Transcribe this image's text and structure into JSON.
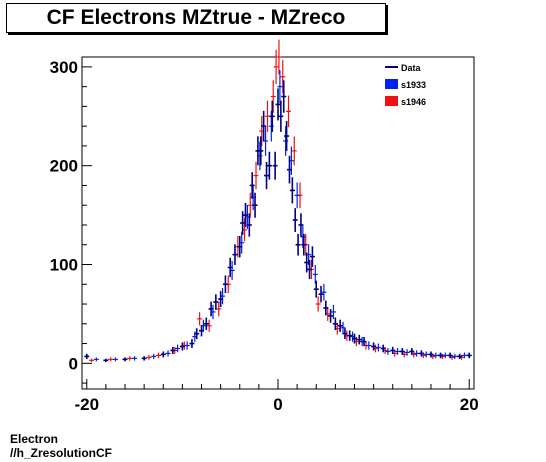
{
  "chart_data": {
    "type": "scatter",
    "title": "CF Electrons MZtrue - MZreco",
    "xlabel": "",
    "ylabel": "",
    "xlim": [
      -20.5,
      20.5
    ],
    "ylim": [
      -26,
      310
    ],
    "xticks": [
      -20,
      0,
      20
    ],
    "yticks": [
      0,
      100,
      200,
      300
    ],
    "grid": false,
    "legend": {
      "placement": "top-right",
      "entries": [
        {
          "label": "Data",
          "style": "line",
          "color": "#000080"
        },
        {
          "label": "s1933",
          "style": "box",
          "color": "#0022ee"
        },
        {
          "label": "s1946",
          "style": "box",
          "color": "#ee1111"
        }
      ]
    },
    "series": [
      {
        "name": "Data",
        "color": "#000080",
        "x": [
          -20.0,
          -18.0,
          -16.0,
          -14.0,
          -12.0,
          -11.0,
          -10.0,
          -9.0,
          -8.5,
          -8.0,
          -7.5,
          -7.0,
          -6.5,
          -6.0,
          -5.5,
          -5.0,
          -4.5,
          -4.0,
          -3.7,
          -3.4,
          -3.0,
          -2.7,
          -2.4,
          -2.1,
          -1.8,
          -1.5,
          -1.2,
          -0.9,
          -0.6,
          -0.3,
          0.0,
          0.3,
          0.6,
          0.9,
          1.2,
          1.5,
          1.8,
          2.1,
          2.4,
          2.7,
          3.0,
          3.3,
          3.6,
          4.0,
          4.5,
          5.0,
          5.5,
          6.0,
          6.5,
          7.0,
          7.5,
          8.0,
          8.5,
          9.0,
          10.0,
          11.0,
          12.0,
          13.0,
          14.0,
          15.0,
          16.0,
          17.0,
          18.0,
          19.0,
          20.0
        ],
        "y": [
          7,
          3,
          4,
          5,
          9,
          13,
          17,
          20,
          30,
          33,
          40,
          55,
          62,
          65,
          80,
          97,
          110,
          118,
          142,
          150,
          140,
          180,
          160,
          215,
          215,
          240,
          190,
          200,
          250,
          200,
          262,
          250,
          270,
          230,
          196,
          175,
          145,
          120,
          140,
          120,
          102,
          95,
          108,
          75,
          70,
          56,
          48,
          40,
          38,
          30,
          28,
          25,
          24,
          22,
          17,
          15,
          13,
          12,
          12,
          10,
          9,
          8,
          8,
          7,
          8
        ]
      },
      {
        "name": "s1933",
        "color": "#0022ee",
        "x": [
          -19.0,
          -17.0,
          -15.0,
          -13.0,
          -11.5,
          -10.5,
          -9.5,
          -8.7,
          -7.8,
          -6.8,
          -5.8,
          -4.8,
          -3.8,
          -3.2,
          -2.6,
          -1.9,
          -1.3,
          -0.7,
          0.2,
          0.8,
          1.4,
          2.0,
          2.6,
          3.2,
          3.9,
          4.8,
          5.8,
          6.8,
          7.8,
          8.8,
          9.5,
          10.5,
          11.5,
          12.5,
          13.5,
          14.5,
          15.5,
          16.5,
          17.5,
          18.5,
          19.5
        ],
        "y": [
          4,
          4,
          5,
          7,
          10,
          15,
          18,
          27,
          38,
          52,
          68,
          94,
          122,
          148,
          168,
          210,
          225,
          240,
          280,
          225,
          205,
          170,
          128,
          110,
          90,
          72,
          52,
          36,
          27,
          22,
          18,
          16,
          12,
          12,
          11,
          10,
          9,
          8,
          8,
          7,
          8
        ]
      },
      {
        "name": "s1946",
        "color": "#ee1111",
        "x": [
          -19.5,
          -17.5,
          -15.5,
          -13.5,
          -12.5,
          -10.8,
          -9.8,
          -8.2,
          -7.2,
          -6.2,
          -5.2,
          -4.2,
          -3.5,
          -2.9,
          -2.3,
          -1.7,
          -1.1,
          -0.5,
          -0.2,
          0.1,
          0.5,
          1.1,
          1.7,
          2.3,
          2.9,
          3.5,
          4.2,
          5.2,
          6.2,
          7.2,
          8.2,
          9.2,
          10.2,
          11.2,
          12.2,
          13.2,
          14.2,
          15.2,
          16.2,
          17.2,
          18.2,
          19.2
        ],
        "y": [
          3,
          4,
          5,
          6,
          8,
          13,
          18,
          45,
          38,
          55,
          80,
          118,
          135,
          160,
          190,
          235,
          250,
          270,
          300,
          310,
          290,
          255,
          215,
          170,
          120,
          95,
          60,
          50,
          35,
          28,
          22,
          18,
          15,
          13,
          10,
          9,
          9,
          8,
          7,
          7,
          6,
          6
        ]
      }
    ]
  },
  "footer": {
    "line1": "Electron",
    "line2": "//h_ZresolutionCF"
  }
}
